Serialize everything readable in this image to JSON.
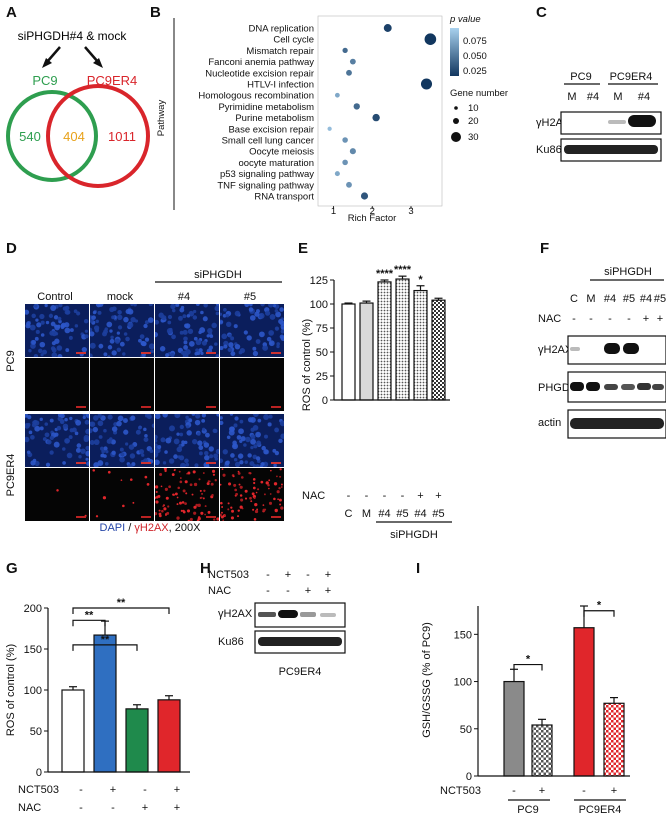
{
  "panels": {
    "A": {
      "label": "A",
      "title": "siPHGDH#4 & mock",
      "left_name": "PC9",
      "right_name": "PC9ER4",
      "only_left": "540",
      "overlap": "404",
      "only_right": "1011",
      "left_color": "#2e9e4f",
      "right_color": "#d9252b",
      "overlap_color": "#e8a21b"
    },
    "B": {
      "label": "B",
      "ylabel": "Pathway",
      "xlabel": "Rich Factor",
      "legend_p_title": "p value",
      "legend_p_ticks": [
        "0.075",
        "0.050",
        "0.025"
      ],
      "legend_gene_title": "Gene number",
      "legend_gene_ticks": [
        "10",
        "20",
        "30"
      ]
    },
    "C": {
      "label": "C",
      "lines": [
        "PC9",
        "PC9ER4"
      ],
      "lanes": [
        "M",
        "#4",
        "M",
        "#4"
      ],
      "blots": [
        "γH2AX",
        "Ku86"
      ]
    },
    "D": {
      "label": "D",
      "columns": [
        "Control",
        "mock",
        "#4",
        "#5"
      ],
      "group_label": "siPHGDH",
      "rows": [
        "PC9",
        "PC9ER4"
      ],
      "caption_dapi": "DAPI",
      "caption_sep": " / ",
      "caption_h2ax": "γH2AX",
      "caption_mag": ", 200X"
    },
    "E": {
      "label": "E",
      "nac_label": "NAC",
      "nac_row": [
        "-",
        "-",
        "-",
        "-",
        "+",
        "+"
      ],
      "group_label": "siPHGDH"
    },
    "F": {
      "label": "F",
      "group_label": "siPHGDH",
      "lanes": [
        "C",
        "M",
        "#4",
        "#5",
        "#4",
        "#5"
      ],
      "nac_label": "NAC",
      "nac_row": [
        "-",
        "-",
        "-",
        "-",
        "+",
        "+"
      ],
      "blots": [
        "γH2AX",
        "PHGDH",
        "actin"
      ]
    },
    "G": {
      "label": "G",
      "row_labels": [
        "NCT503",
        "NAC"
      ],
      "nct_row": [
        "-",
        "+",
        "-",
        "+"
      ],
      "nac_row": [
        "-",
        "-",
        "+",
        "+"
      ]
    },
    "H": {
      "label": "H",
      "row_labels": [
        "NCT503",
        "NAC"
      ],
      "nct_row": [
        "-",
        "+",
        "-",
        "+"
      ],
      "nac_row": [
        "-",
        "-",
        "+",
        "+"
      ],
      "blots": [
        "γH2AX",
        "Ku86"
      ],
      "cell_line": "PC9ER4"
    },
    "I": {
      "label": "I",
      "row_label": "NCT503",
      "nct_row": [
        "-",
        "+",
        "-",
        "+"
      ],
      "groups": [
        "PC9",
        "PC9ER4"
      ]
    }
  },
  "chart_data": [
    {
      "panel": "B",
      "type": "scatter",
      "xlabel": "Rich Factor",
      "ylabel": "Pathway",
      "xlim": [
        0.6,
        3.8
      ],
      "xticks": [
        "1",
        "2",
        "3"
      ],
      "categories": [
        "DNA replication",
        "Cell cycle",
        "Mismatch repair",
        "Fanconi anemia pathway",
        "Nucleotide excision repair",
        "HTLV-I infection",
        "Homologous recombination",
        "Pyrimidine metabolism",
        "Purine metabolism",
        "Base excision repair",
        "Small cell lung cancer",
        "Oocyte meiosis",
        "oocyte maturation",
        "p53 signaling pathway",
        "TNF signaling pathway",
        "RNA transport"
      ],
      "rich_factor": [
        2.4,
        3.5,
        1.3,
        1.5,
        1.4,
        3.4,
        1.1,
        1.6,
        2.1,
        0.9,
        1.3,
        1.5,
        1.3,
        1.1,
        1.4,
        1.8
      ],
      "gene_number": [
        18,
        32,
        8,
        10,
        10,
        30,
        6,
        12,
        16,
        4,
        9,
        11,
        9,
        7,
        10,
        15
      ],
      "p_value": [
        0.01,
        0.005,
        0.03,
        0.04,
        0.035,
        0.005,
        0.06,
        0.03,
        0.015,
        0.07,
        0.05,
        0.045,
        0.05,
        0.06,
        0.05,
        0.02
      ],
      "legend": "right"
    },
    {
      "panel": "E",
      "type": "bar",
      "ylabel": "ROS of control (%)",
      "ylim": [
        0,
        125
      ],
      "yticks": [
        "0",
        "25",
        "50",
        "75",
        "100",
        "125"
      ],
      "categories": [
        "C",
        "M",
        "#4",
        "#5",
        "#4",
        "#5"
      ],
      "values": [
        100,
        101,
        123,
        126,
        114,
        104
      ],
      "errors": [
        1,
        2,
        2,
        3,
        5,
        2
      ],
      "significance": [
        "",
        "",
        "****",
        "****",
        "*",
        ""
      ],
      "fill": [
        "#ffffff",
        "#d9d9d9",
        "dots",
        "dots",
        "dots",
        "check"
      ]
    },
    {
      "panel": "G",
      "type": "bar",
      "ylabel": "ROS of control (%)",
      "ylim": [
        0,
        200
      ],
      "yticks": [
        "0",
        "50",
        "100",
        "150",
        "200"
      ],
      "categories": [
        "-/-",
        "+/-",
        "-/+",
        "+/+"
      ],
      "values": [
        100,
        167,
        77,
        88
      ],
      "errors": [
        4,
        17,
        5,
        5
      ],
      "colors": [
        "#ffffff",
        "#2f6fc1",
        "#1f8a4c",
        "#e0262b"
      ],
      "significance": [
        {
          "from": 0,
          "to": 1,
          "label": "**"
        },
        {
          "from": 0,
          "to": 2,
          "label": "**"
        },
        {
          "from": 0,
          "to": 3,
          "label": "**"
        }
      ]
    },
    {
      "panel": "I",
      "type": "bar",
      "ylabel": "GSH/GSSG (% of PC9)",
      "ylim": [
        0,
        180
      ],
      "yticks": [
        "0",
        "50",
        "100",
        "150"
      ],
      "categories": [
        "PC9 -",
        "PC9 +",
        "PC9ER4 -",
        "PC9ER4 +"
      ],
      "values": [
        100,
        54,
        157,
        77
      ],
      "errors": [
        13,
        6,
        23,
        6
      ],
      "colors": [
        "#8a8a8a",
        "check-gray",
        "#e0262b",
        "check-red"
      ],
      "significance": [
        {
          "from": 0,
          "to": 1,
          "label": "*"
        },
        {
          "from": 2,
          "to": 3,
          "label": "*"
        }
      ]
    }
  ]
}
